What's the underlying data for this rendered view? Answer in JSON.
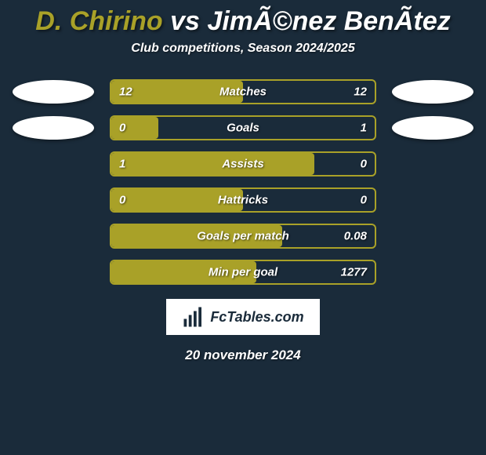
{
  "colors": {
    "background": "#1a2b3a",
    "player1_accent": "#a9a128",
    "player2_accent": "#ffffff",
    "bar_border": "#a9a128",
    "text": "#ffffff",
    "badge_left": "#ffffff",
    "badge_right": "#ffffff"
  },
  "title": {
    "player1_name": "D. Chirino",
    "vs": " vs ",
    "player2_name": "JimÃ©nez BenÃ­tez",
    "fontsize": 34
  },
  "subtitle": "Club competitions, Season 2024/2025",
  "rows": [
    {
      "label": "Matches",
      "left_value": "12",
      "right_value": "12",
      "left_pct": 50,
      "right_pct": 50,
      "show_badges": true
    },
    {
      "label": "Goals",
      "left_value": "0",
      "right_value": "1",
      "left_pct": 18,
      "right_pct": 82,
      "show_badges": true
    },
    {
      "label": "Assists",
      "left_value": "1",
      "right_value": "0",
      "left_pct": 77,
      "right_pct": 23,
      "show_badges": false
    },
    {
      "label": "Hattricks",
      "left_value": "0",
      "right_value": "0",
      "left_pct": 50,
      "right_pct": 50,
      "show_badges": false
    },
    {
      "label": "Goals per match",
      "left_value": "",
      "right_value": "0.08",
      "left_pct": 65,
      "right_pct": 35,
      "show_badges": false
    },
    {
      "label": "Min per goal",
      "left_value": "",
      "right_value": "1277",
      "left_pct": 55,
      "right_pct": 45,
      "show_badges": false
    }
  ],
  "footer": {
    "brand": "FcTables.com",
    "date": "20 november 2024"
  }
}
